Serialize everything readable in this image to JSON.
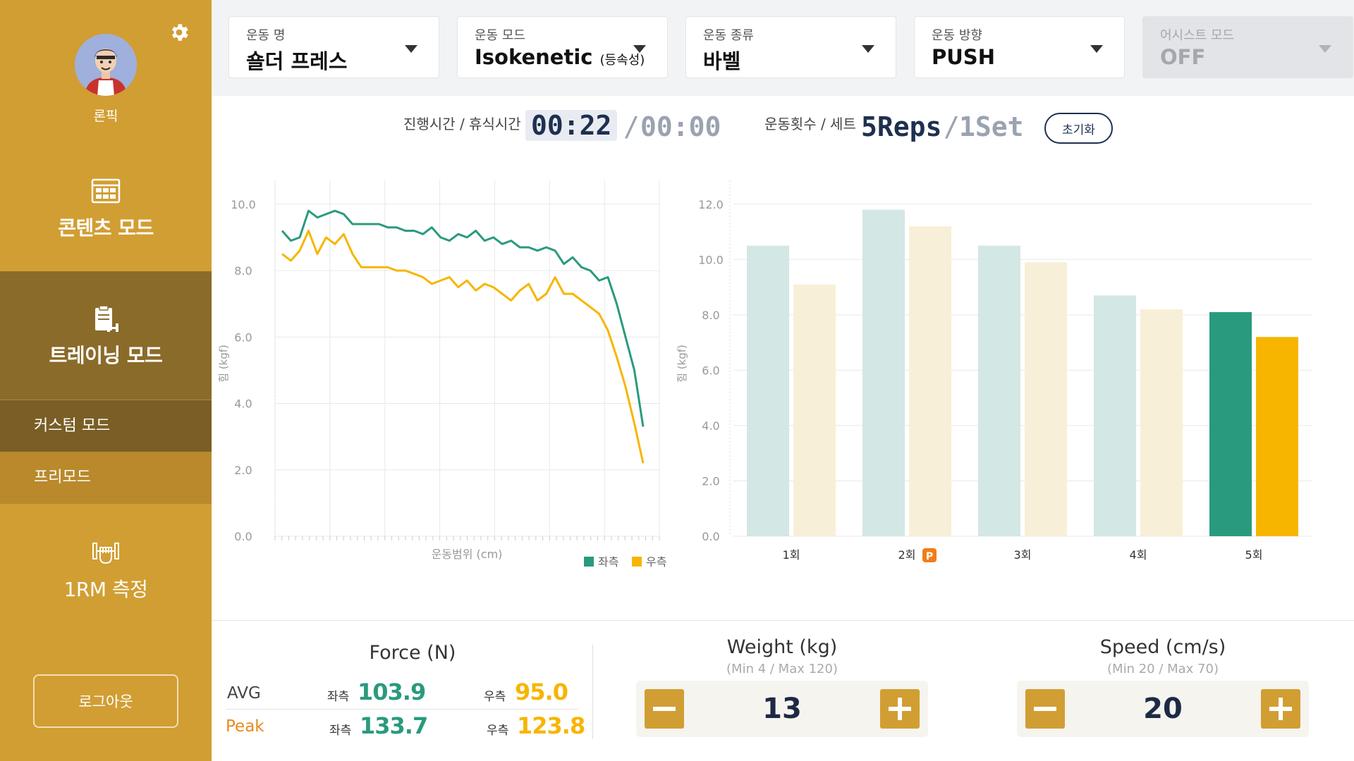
{
  "user": {
    "name": "론픽"
  },
  "sidebar": {
    "content_mode": "콘텐츠 모드",
    "training_mode": "트레이닝 모드",
    "sub_items": [
      "커스텀 모드",
      "프리모드"
    ],
    "one_rm": "1RM 측정",
    "logout": "로그아웃"
  },
  "top": {
    "dropdowns": [
      {
        "label": "운동 명",
        "value": "숄더 프레스",
        "suffix": ""
      },
      {
        "label": "운동 모드",
        "value": "Isokenetic",
        "suffix": "(등속성)"
      },
      {
        "label": "운동 종류",
        "value": "바벨",
        "suffix": ""
      },
      {
        "label": "운동 방향",
        "value": "PUSH",
        "suffix": ""
      },
      {
        "label": "어시스트 모드",
        "value": "OFF",
        "suffix": "",
        "disabled": true
      }
    ]
  },
  "timer": {
    "label": "진행시간 / 휴식시간",
    "elapsed": "00:22",
    "sep": "/",
    "rest": "00:00",
    "reps_label": "운동횟수 / 세트",
    "reps": "5Reps",
    "sets": "1Set",
    "reset": "초기화"
  },
  "colors": {
    "left": "#2a9a7e",
    "right": "#f7b500",
    "left_light": "#d3e7e4",
    "right_light": "#f8efd8",
    "accent": "#d19e33",
    "navy": "#1e3050"
  },
  "chart_data": [
    {
      "type": "line",
      "xlabel": "운동범위 (cm)",
      "ylabel": "힘 (kgf)",
      "ylim": [
        0,
        10
      ],
      "yticks": [
        "0.0",
        "2.0",
        "4.0",
        "6.0",
        "8.0",
        "10.0"
      ],
      "legend": "bottom-right",
      "grid": true,
      "x": [
        0,
        1,
        2,
        3,
        4,
        5,
        6,
        7,
        8,
        9,
        10,
        11,
        12,
        13,
        14,
        15,
        16,
        17,
        18,
        19,
        20,
        21,
        22,
        23,
        24,
        25,
        26,
        27,
        28,
        29,
        30,
        31,
        32,
        33,
        34,
        35,
        36,
        37,
        38,
        39,
        40,
        41
      ],
      "series": [
        {
          "name": "좌측",
          "values": [
            9.2,
            8.9,
            9.0,
            9.8,
            9.6,
            9.7,
            9.8,
            9.7,
            9.4,
            9.4,
            9.4,
            9.4,
            9.3,
            9.3,
            9.2,
            9.2,
            9.1,
            9.3,
            9.0,
            8.9,
            9.1,
            9.0,
            9.2,
            8.9,
            9.0,
            8.8,
            8.9,
            8.7,
            8.7,
            8.6,
            8.7,
            8.6,
            8.2,
            8.4,
            8.1,
            8.0,
            7.7,
            7.8,
            7.0,
            6.0,
            5.0,
            3.3
          ]
        },
        {
          "name": "우측",
          "values": [
            8.5,
            8.3,
            8.6,
            9.2,
            8.5,
            9.0,
            8.8,
            9.1,
            8.5,
            8.1,
            8.1,
            8.1,
            8.1,
            8.0,
            8.0,
            7.9,
            7.8,
            7.6,
            7.7,
            7.8,
            7.5,
            7.7,
            7.4,
            7.6,
            7.5,
            7.3,
            7.1,
            7.4,
            7.6,
            7.1,
            7.3,
            7.8,
            7.3,
            7.3,
            7.1,
            6.9,
            6.7,
            6.2,
            5.4,
            4.5,
            3.4,
            2.2
          ]
        }
      ]
    },
    {
      "type": "bar",
      "ylabel": "힘 (kgf)",
      "ylim": [
        0,
        12
      ],
      "yticks": [
        "0.0",
        "2.0",
        "4.0",
        "6.0",
        "8.0",
        "10.0",
        "12.0"
      ],
      "categories": [
        "1회",
        "2회",
        "3회",
        "4회",
        "5회"
      ],
      "peak_badge": {
        "category": "2회",
        "text": "P"
      },
      "series": [
        {
          "name": "좌측",
          "values": [
            10.5,
            11.8,
            10.5,
            8.7,
            8.1
          ]
        },
        {
          "name": "우측",
          "values": [
            9.1,
            11.2,
            9.9,
            8.2,
            7.2
          ]
        }
      ]
    }
  ],
  "force": {
    "title": "Force (N)",
    "rows": [
      {
        "label": "AVG",
        "left_label": "좌측",
        "left": "103.9",
        "right_label": "우측",
        "right": "95.0"
      },
      {
        "label": "Peak",
        "left_label": "좌측",
        "left": "133.7",
        "right_label": "우측",
        "right": "123.8"
      }
    ]
  },
  "weight": {
    "title": "Weight (kg)",
    "range": "(Min 4 / Max 120)",
    "value": "13"
  },
  "speed": {
    "title": "Speed (cm/s)",
    "range": "(Min 20 / Max 70)",
    "value": "20"
  }
}
